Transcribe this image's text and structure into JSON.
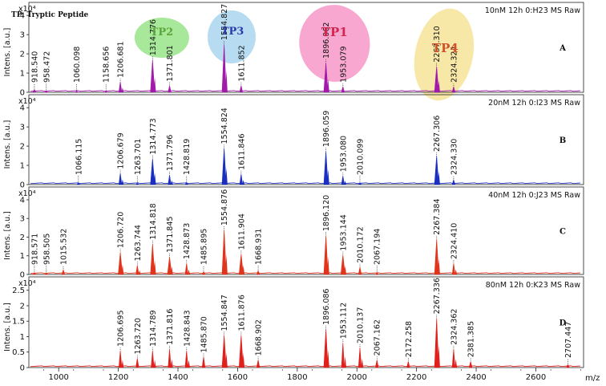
{
  "legend_text": "TP: Tryptic Peptide",
  "xaxis": {
    "label": "m/z",
    "range": [
      900,
      2760
    ],
    "ticks": [
      1000,
      1200,
      1400,
      1600,
      1800,
      2000,
      2200,
      2400,
      2600
    ]
  },
  "ylabel_text": "Intens. [a.u.]",
  "ylabel_exponent": "x10⁴",
  "tp_labels": [
    {
      "name": "TP2",
      "mz": 1346,
      "color": "#5aa63a",
      "fill": "#8be07a"
    },
    {
      "name": "TP3",
      "mz": 1583,
      "color": "#2a3aa8",
      "fill": "#9fd0ec"
    },
    {
      "name": "TP1",
      "mz": 1925,
      "color": "#d3254e",
      "fill": "#f58ac0"
    },
    {
      "name": "TP4",
      "mz": 2296,
      "color": "#d2502a",
      "fill": "#f6e08a"
    }
  ],
  "chart_data": [
    {
      "type": "line",
      "panel": "A",
      "title": "10nM 12h 0:H23 MS Raw",
      "color": "#a21aa9",
      "ylim": [
        0,
        4.3
      ],
      "yticks": [
        0,
        1,
        2,
        3,
        4
      ],
      "peaks": [
        {
          "mz": 918.54,
          "label": "918.540",
          "y": 0.15
        },
        {
          "mz": 958.472,
          "label": "958.472",
          "y": 0.08
        },
        {
          "mz": 1060.098,
          "label": "1060.098",
          "y": 0.06
        },
        {
          "mz": 1158.656,
          "label": "1158.656",
          "y": 0.05
        },
        {
          "mz": 1206.681,
          "label": "1206.681",
          "y": 0.55
        },
        {
          "mz": 1314.776,
          "label": "1314.776",
          "y": 1.7
        },
        {
          "mz": 1371.801,
          "label": "1371.801",
          "y": 0.35
        },
        {
          "mz": 1554.827,
          "label": "1554.827",
          "y": 2.5
        },
        {
          "mz": 1611.852,
          "label": "1611.852",
          "y": 0.35
        },
        {
          "mz": 1896.062,
          "label": "1896.062",
          "y": 1.55
        },
        {
          "mz": 1953.079,
          "label": "1953.079",
          "y": 0.3
        },
        {
          "mz": 2267.31,
          "label": "2267.310",
          "y": 1.35
        },
        {
          "mz": 2324.324,
          "label": "2324.324",
          "y": 0.3
        }
      ]
    },
    {
      "type": "line",
      "panel": "B",
      "title": "20nM 12h 0:I23 MS Raw",
      "color": "#1a2fc0",
      "ylim": [
        0,
        4.3
      ],
      "yticks": [
        0,
        1,
        2,
        3,
        4
      ],
      "peaks": [
        {
          "mz": 1066.115,
          "label": "1066.115",
          "y": 0.1
        },
        {
          "mz": 1206.679,
          "label": "1206.679",
          "y": 0.6
        },
        {
          "mz": 1263.701,
          "label": "1263.701",
          "y": 0.08
        },
        {
          "mz": 1314.773,
          "label": "1314.773",
          "y": 1.35
        },
        {
          "mz": 1371.796,
          "label": "1371.796",
          "y": 0.5
        },
        {
          "mz": 1428.819,
          "label": "1428.819",
          "y": 0.12
        },
        {
          "mz": 1554.824,
          "label": "1554.824",
          "y": 1.9
        },
        {
          "mz": 1611.846,
          "label": "1611.846",
          "y": 0.55
        },
        {
          "mz": 1896.059,
          "label": "1896.059",
          "y": 1.75
        },
        {
          "mz": 1953.08,
          "label": "1953.080",
          "y": 0.45
        },
        {
          "mz": 2010.099,
          "label": "2010.099",
          "y": 0.1
        },
        {
          "mz": 2267.306,
          "label": "2267.306",
          "y": 1.5
        },
        {
          "mz": 2324.33,
          "label": "2324.330",
          "y": 0.25
        }
      ]
    },
    {
      "type": "line",
      "panel": "C",
      "title": "40nM 12h 0:J23 MS Raw",
      "color": "#e0341c",
      "ylim": [
        0,
        4.3
      ],
      "yticks": [
        0,
        1,
        2,
        3,
        4
      ],
      "peaks": [
        {
          "mz": 918.571,
          "label": "918.571",
          "y": 0.1
        },
        {
          "mz": 958.505,
          "label": "958.505",
          "y": 0.08
        },
        {
          "mz": 1015.532,
          "label": "1015.532",
          "y": 0.25
        },
        {
          "mz": 1206.72,
          "label": "1206.720",
          "y": 1.2
        },
        {
          "mz": 1263.744,
          "label": "1263.744",
          "y": 0.5
        },
        {
          "mz": 1314.818,
          "label": "1314.818",
          "y": 1.65
        },
        {
          "mz": 1371.845,
          "label": "1371.845",
          "y": 0.95
        },
        {
          "mz": 1428.873,
          "label": "1428.873",
          "y": 0.6
        },
        {
          "mz": 1485.895,
          "label": "1485.895",
          "y": 0.15
        },
        {
          "mz": 1554.876,
          "label": "1554.876",
          "y": 2.4
        },
        {
          "mz": 1611.904,
          "label": "1611.904",
          "y": 1.1
        },
        {
          "mz": 1668.931,
          "label": "1668.931",
          "y": 0.2
        },
        {
          "mz": 1896.12,
          "label": "1896.120",
          "y": 2.1
        },
        {
          "mz": 1953.144,
          "label": "1953.144",
          "y": 1.05
        },
        {
          "mz": 2010.172,
          "label": "2010.172",
          "y": 0.4
        },
        {
          "mz": 2067.194,
          "label": "2067.194",
          "y": 0.1
        },
        {
          "mz": 2267.384,
          "label": "2267.384",
          "y": 1.9
        },
        {
          "mz": 2324.41,
          "label": "2324.410",
          "y": 0.6
        }
      ]
    },
    {
      "type": "line",
      "panel": "D",
      "title": "80nM 12h 0:K23 MS Raw",
      "color": "#e0201c",
      "ylim": [
        0,
        2.7
      ],
      "yticks": [
        0,
        0.5,
        1.0,
        1.5,
        2.0,
        2.5
      ],
      "peaks": [
        {
          "mz": 1206.695,
          "label": "1206.695",
          "y": 0.55
        },
        {
          "mz": 1263.72,
          "label": "1263.720",
          "y": 0.3
        },
        {
          "mz": 1314.789,
          "label": "1314.789",
          "y": 0.55
        },
        {
          "mz": 1371.816,
          "label": "1371.816",
          "y": 0.6
        },
        {
          "mz": 1428.843,
          "label": "1428.843",
          "y": 0.55
        },
        {
          "mz": 1485.87,
          "label": "1485.870",
          "y": 0.35
        },
        {
          "mz": 1554.847,
          "label": "1554.847",
          "y": 1.05
        },
        {
          "mz": 1611.876,
          "label": "1611.876",
          "y": 1.05
        },
        {
          "mz": 1668.902,
          "label": "1668.902",
          "y": 0.25
        },
        {
          "mz": 1896.086,
          "label": "1896.086",
          "y": 1.25
        },
        {
          "mz": 1953.112,
          "label": "1953.112",
          "y": 0.8
        },
        {
          "mz": 2010.137,
          "label": "2010.137",
          "y": 0.65
        },
        {
          "mz": 2067.162,
          "label": "2067.162",
          "y": 0.25
        },
        {
          "mz": 2172.258,
          "label": "2172.258",
          "y": 0.2
        },
        {
          "mz": 2267.336,
          "label": "2267.336",
          "y": 1.6
        },
        {
          "mz": 2324.362,
          "label": "2324.362",
          "y": 0.6
        },
        {
          "mz": 2381.385,
          "label": "2381.385",
          "y": 0.2
        },
        {
          "mz": 2707.447,
          "label": "2707.447",
          "y": 0.1
        }
      ]
    }
  ]
}
